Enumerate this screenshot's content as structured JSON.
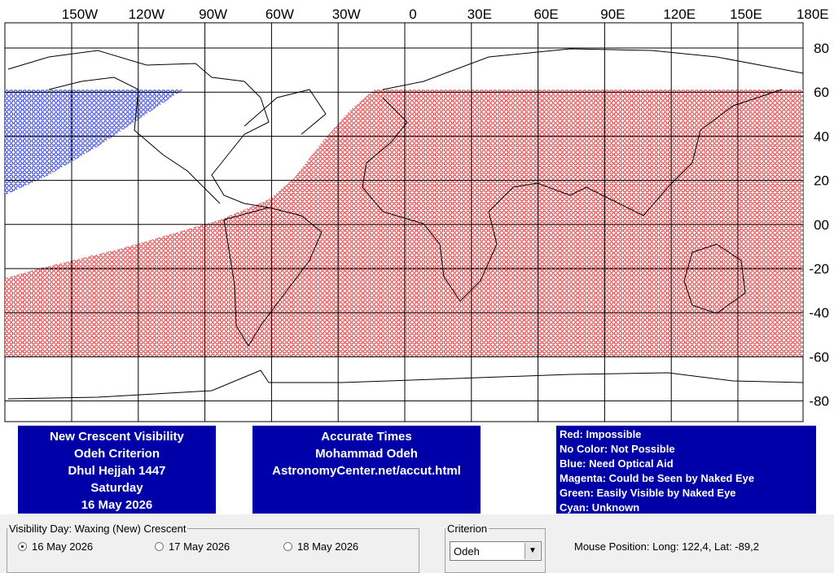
{
  "map": {
    "x_labels": [
      "150W",
      "120W",
      "90W",
      "60W",
      "30W",
      "0",
      "30E",
      "60E",
      "90E",
      "120E",
      "150E",
      "180E"
    ],
    "y_labels": [
      "80",
      "60",
      "40",
      "20",
      "00",
      "-20",
      "-40",
      "-60",
      "-80"
    ]
  },
  "info_left": [
    "New Crescent Visibility",
    "Odeh Criterion",
    "Dhul Hejjah 1447",
    "Saturday",
    "16 May 2026"
  ],
  "info_center": [
    "Accurate Times",
    "Mohammad Odeh",
    "AstronomyCenter.net/accut.html"
  ],
  "legend": [
    "Red: Impossible",
    "No Color: Not Possible",
    "Blue: Need Optical Aid",
    "Magenta: Could be Seen by Naked Eye",
    "Green: Easily Visible by Naked Eye",
    "Cyan: Unknown"
  ],
  "visibility_day": {
    "label": "Visibility Day: Waxing (New) Crescent",
    "options": [
      "16 May 2026",
      "17 May 2026",
      "18 May 2026"
    ],
    "selected": 0
  },
  "criterion": {
    "label": "Criterion",
    "value": "Odeh"
  },
  "mouse_position": "Mouse Position: Long: 122,4, Lat: -89,2"
}
